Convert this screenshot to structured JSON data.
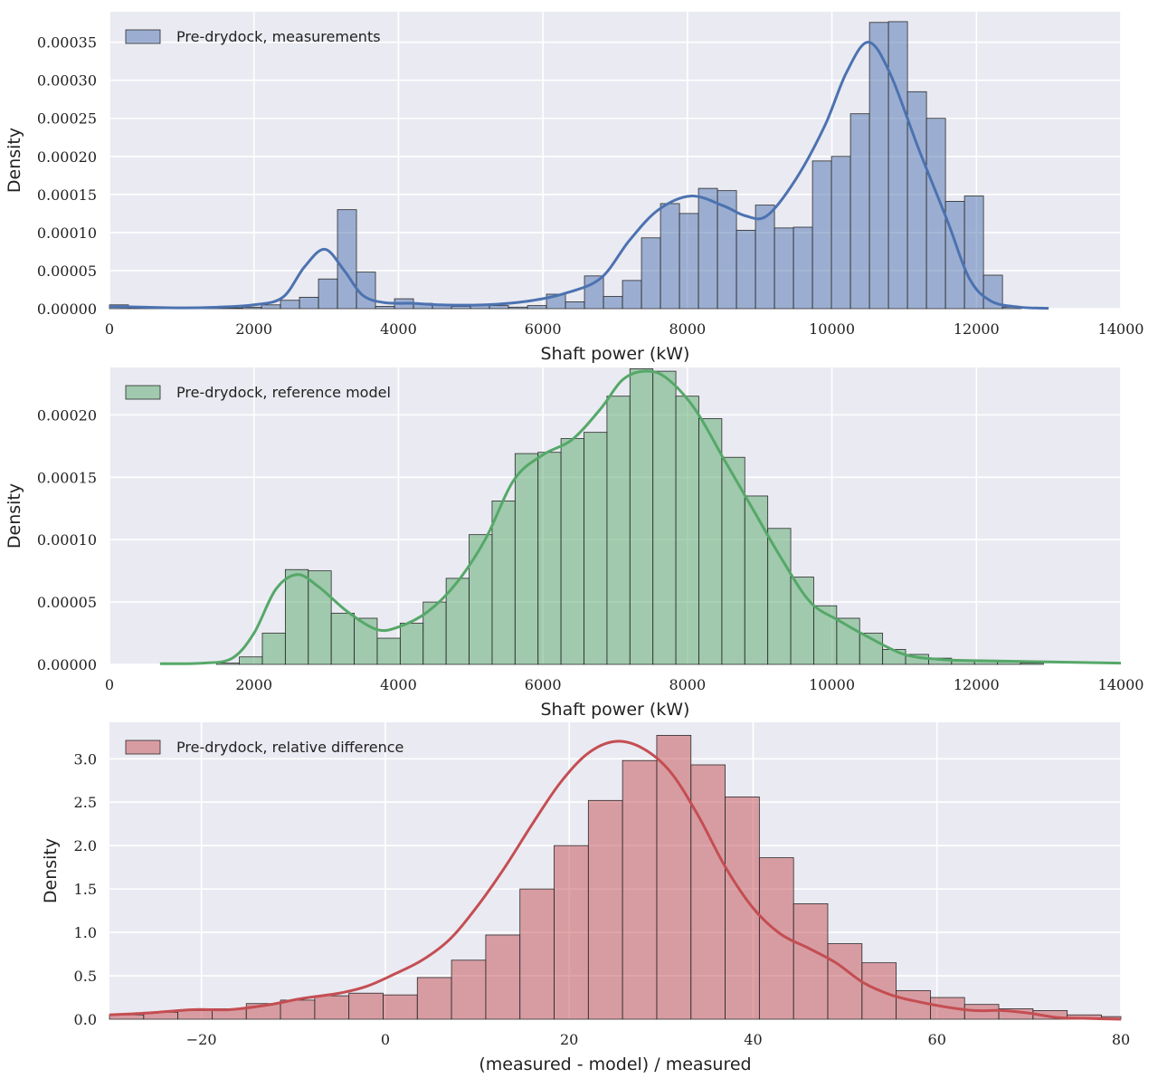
{
  "colors": {
    "panel_bg": "#eaeaf2",
    "grid": "#ffffff",
    "bar_edge": "#2a2a2a",
    "blue": "#4c72b0",
    "green": "#55a868",
    "red": "#c44e52"
  },
  "chart_data": [
    {
      "type": "bar",
      "title": "",
      "xlabel": "Shaft power (kW)",
      "ylabel": "Density",
      "xlim": [
        0,
        14000
      ],
      "ylim": [
        0,
        0.00039
      ],
      "xticks": [
        0,
        2000,
        4000,
        6000,
        8000,
        10000,
        12000,
        14000
      ],
      "xtick_labels": [
        "0",
        "2000",
        "4000",
        "6000",
        "8000",
        "10000",
        "12000",
        "14000"
      ],
      "yticks": [
        0,
        5e-05,
        0.0001,
        0.00015,
        0.0002,
        0.00025,
        0.0003,
        0.00035
      ],
      "ytick_labels": [
        "0.00000",
        "0.00005",
        "0.00010",
        "0.00015",
        "0.00020",
        "0.00025",
        "0.00030",
        "0.00035"
      ],
      "grid": true,
      "legend": {
        "position": "top-left",
        "label": "Pre-drydock, measurements"
      },
      "color_key": "blue",
      "bin_start": 0,
      "bin_width": 263,
      "values": [
        5e-06,
        1e-06,
        1e-06,
        1e-06,
        1e-06,
        1e-06,
        1e-06,
        2e-06,
        5e-06,
        1.1e-05,
        1.5e-05,
        3.9e-05,
        0.00013,
        4.8e-05,
        3e-06,
        1.3e-05,
        7e-06,
        5e-06,
        3e-06,
        5e-06,
        4e-06,
        2e-06,
        4e-06,
        1.9e-05,
        9e-06,
        4.3e-05,
        1.6e-05,
        3.7e-05,
        9.3e-05,
        0.000138,
        0.000125,
        0.000158,
        0.000155,
        0.000103,
        0.000136,
        0.000106,
        0.000107,
        0.000194,
        0.0002,
        0.000256,
        0.000376,
        0.000377,
        0.000285,
        0.00025,
        0.000141,
        0.000148,
        4.4e-05,
        2e-06
      ],
      "kde": [
        [
          0,
          3e-06
        ],
        [
          1000,
          1e-06
        ],
        [
          1500,
          2e-06
        ],
        [
          2000,
          5e-06
        ],
        [
          2400,
          1.5e-05
        ],
        [
          2700,
          5.5e-05
        ],
        [
          2980,
          7.8e-05
        ],
        [
          3250,
          5e-05
        ],
        [
          3500,
          1.8e-05
        ],
        [
          3800,
          8e-06
        ],
        [
          4200,
          7e-06
        ],
        [
          4600,
          5e-06
        ],
        [
          5200,
          5e-06
        ],
        [
          5800,
          1e-05
        ],
        [
          6300,
          2e-05
        ],
        [
          6800,
          4e-05
        ],
        [
          7200,
          9e-05
        ],
        [
          7600,
          0.00013
        ],
        [
          8050,
          0.000148
        ],
        [
          8500,
          0.000135
        ],
        [
          8800,
          0.000122
        ],
        [
          9100,
          0.000122
        ],
        [
          9500,
          0.00017
        ],
        [
          9900,
          0.00024
        ],
        [
          10200,
          0.00031
        ],
        [
          10500,
          0.00035
        ],
        [
          10800,
          0.00031
        ],
        [
          11200,
          0.00021
        ],
        [
          11600,
          0.000115
        ],
        [
          11900,
          4e-05
        ],
        [
          12200,
          1e-05
        ],
        [
          12600,
          2e-06
        ],
        [
          13000,
          5e-07
        ]
      ]
    },
    {
      "type": "bar",
      "title": "",
      "xlabel": "Shaft power (kW)",
      "ylabel": "Density",
      "xlim": [
        0,
        14000
      ],
      "ylim": [
        0,
        0.000238
      ],
      "xticks": [
        0,
        2000,
        4000,
        6000,
        8000,
        10000,
        12000,
        14000
      ],
      "xtick_labels": [
        "0",
        "2000",
        "4000",
        "6000",
        "8000",
        "10000",
        "12000",
        "14000"
      ],
      "yticks": [
        0,
        5e-05,
        0.0001,
        0.00015,
        0.0002
      ],
      "ytick_labels": [
        "0.00000",
        "0.00005",
        "0.00010",
        "0.00015",
        "0.00020"
      ],
      "grid": true,
      "legend": {
        "position": "top-left",
        "label": "Pre-drydock, reference model"
      },
      "color_key": "green",
      "bin_start": 1480,
      "bin_width": 318,
      "values": [
        1e-06,
        6e-06,
        2.5e-05,
        7.6e-05,
        7.5e-05,
        4.1e-05,
        3.7e-05,
        2.1e-05,
        3.3e-05,
        5e-05,
        6.9e-05,
        0.000104,
        0.000131,
        0.000169,
        0.00017,
        0.000181,
        0.000186,
        0.000215,
        0.000237,
        0.000235,
        0.000215,
        0.000197,
        0.000166,
        0.000135,
        0.000109,
        7e-05,
        4.7e-05,
        3.7e-05,
        2.5e-05,
        1.2e-05,
        8e-06,
        5e-06,
        3e-06,
        3e-06,
        2e-06,
        1e-06
      ],
      "kde": [
        [
          700,
          5e-07
        ],
        [
          1300,
          1e-06
        ],
        [
          1700,
          5e-06
        ],
        [
          2000,
          2.5e-05
        ],
        [
          2300,
          6e-05
        ],
        [
          2600,
          7.2e-05
        ],
        [
          2900,
          6.2e-05
        ],
        [
          3300,
          4.2e-05
        ],
        [
          3700,
          2.8e-05
        ],
        [
          4000,
          3e-05
        ],
        [
          4400,
          4.2e-05
        ],
        [
          4800,
          6.5e-05
        ],
        [
          5200,
          0.0001
        ],
        [
          5600,
          0.000148
        ],
        [
          6000,
          0.000168
        ],
        [
          6400,
          0.00018
        ],
        [
          6800,
          0.000205
        ],
        [
          7100,
          0.000228
        ],
        [
          7400,
          0.000235
        ],
        [
          7700,
          0.00023
        ],
        [
          8100,
          0.000205
        ],
        [
          8500,
          0.000165
        ],
        [
          8900,
          0.000125
        ],
        [
          9300,
          8.5e-05
        ],
        [
          9700,
          5e-05
        ],
        [
          10100,
          3.5e-05
        ],
        [
          10500,
          2.2e-05
        ],
        [
          11000,
          8e-06
        ],
        [
          11500,
          4e-06
        ],
        [
          12000,
          3e-06
        ],
        [
          13000,
          2e-06
        ],
        [
          14000,
          1e-06
        ]
      ]
    },
    {
      "type": "bar",
      "title": "",
      "xlabel": "(measured - model) / measured",
      "ylabel": "Density",
      "xlim": [
        -30,
        80
      ],
      "ylim": [
        0,
        3.42
      ],
      "xticks": [
        -20,
        0,
        20,
        40,
        60,
        80
      ],
      "xtick_labels": [
        "−20",
        "0",
        "20",
        "40",
        "60",
        "80"
      ],
      "yticks": [
        0,
        0.5,
        1.0,
        1.5,
        2.0,
        2.5,
        3.0
      ],
      "ytick_labels": [
        "0.0",
        "0.5",
        "1.0",
        "1.5",
        "2.0",
        "2.5",
        "3.0"
      ],
      "grid": true,
      "legend": {
        "position": "top-left",
        "label": "Pre-drydock, relative difference"
      },
      "color_key": "red",
      "bin_start": -30,
      "bin_width": 3.72,
      "values": [
        0.05,
        0.08,
        0.1,
        0.12,
        0.18,
        0.22,
        0.27,
        0.3,
        0.28,
        0.48,
        0.68,
        0.97,
        1.5,
        2.0,
        2.52,
        2.98,
        3.27,
        2.93,
        2.56,
        1.86,
        1.33,
        0.87,
        0.65,
        0.33,
        0.25,
        0.17,
        0.12,
        0.1,
        0.05,
        0.03
      ],
      "kde": [
        [
          -30,
          0.05
        ],
        [
          -26,
          0.07
        ],
        [
          -21,
          0.11
        ],
        [
          -17,
          0.11
        ],
        [
          -13,
          0.16
        ],
        [
          -9,
          0.24
        ],
        [
          -5,
          0.3
        ],
        [
          -2,
          0.38
        ],
        [
          1,
          0.52
        ],
        [
          4,
          0.68
        ],
        [
          7,
          0.92
        ],
        [
          10,
          1.3
        ],
        [
          13,
          1.75
        ],
        [
          16,
          2.25
        ],
        [
          19,
          2.72
        ],
        [
          22,
          3.06
        ],
        [
          25,
          3.2
        ],
        [
          28,
          3.12
        ],
        [
          31,
          2.85
        ],
        [
          34,
          2.35
        ],
        [
          37,
          1.75
        ],
        [
          40,
          1.28
        ],
        [
          43,
          0.98
        ],
        [
          46,
          0.82
        ],
        [
          49,
          0.65
        ],
        [
          52,
          0.42
        ],
        [
          55,
          0.28
        ],
        [
          58,
          0.2
        ],
        [
          61,
          0.14
        ],
        [
          64,
          0.1
        ],
        [
          67,
          0.1
        ],
        [
          70,
          0.07
        ],
        [
          73,
          0.02
        ],
        [
          76,
          0.01
        ],
        [
          80,
          0.0
        ]
      ]
    }
  ]
}
